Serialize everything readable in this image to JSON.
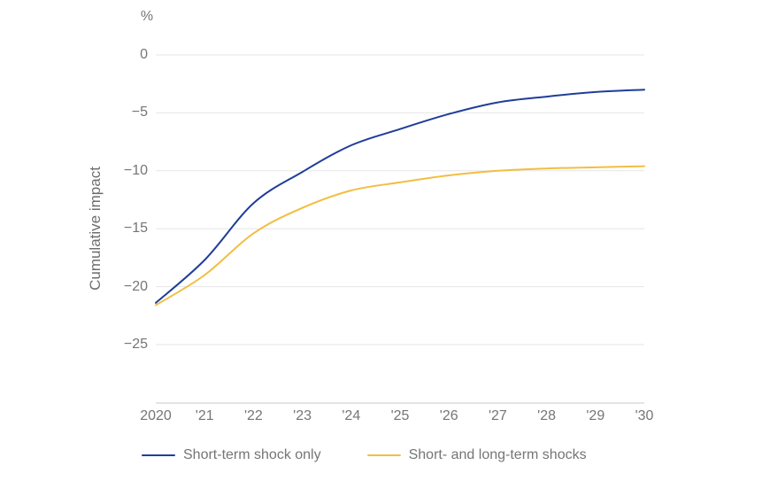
{
  "colors": {
    "background": "#ffffff",
    "gridline": "#e6e6e6",
    "axis_line": "#c9c9c9",
    "tick_text": "#757575",
    "series_blue": "#1f3d99",
    "series_yellow": "#f2be41"
  },
  "chart_data": {
    "type": "line",
    "unit_label": "%",
    "ylabel": "Cumulative impact",
    "x": [
      2020,
      2021,
      2022,
      2023,
      2024,
      2025,
      2026,
      2027,
      2028,
      2029,
      2030
    ],
    "xticklabels": [
      "2020",
      "'21",
      "'22",
      "'23",
      "'24",
      "'25",
      "'26",
      "'27",
      "'28",
      "'29",
      "'30"
    ],
    "yticks": [
      0,
      -5,
      -10,
      -15,
      -20,
      -25
    ],
    "yticklabels": [
      "0",
      "−5",
      "−10",
      "−15",
      "−20",
      "−25"
    ],
    "ylim": [
      -30,
      0
    ],
    "grid": true,
    "legend_position": "bottom",
    "series": [
      {
        "name": "Short-term shock only",
        "color": "#1f3d99",
        "values": [
          -21.4,
          -17.7,
          -12.8,
          -10.1,
          -7.8,
          -6.4,
          -5.1,
          -4.1,
          -3.6,
          -3.2,
          -3.0
        ]
      },
      {
        "name": "Short- and long-term shocks",
        "color": "#f2be41",
        "values": [
          -21.6,
          -19.0,
          -15.4,
          -13.2,
          -11.7,
          -11.0,
          -10.4,
          -10.0,
          -9.8,
          -9.7,
          -9.6
        ]
      }
    ]
  }
}
